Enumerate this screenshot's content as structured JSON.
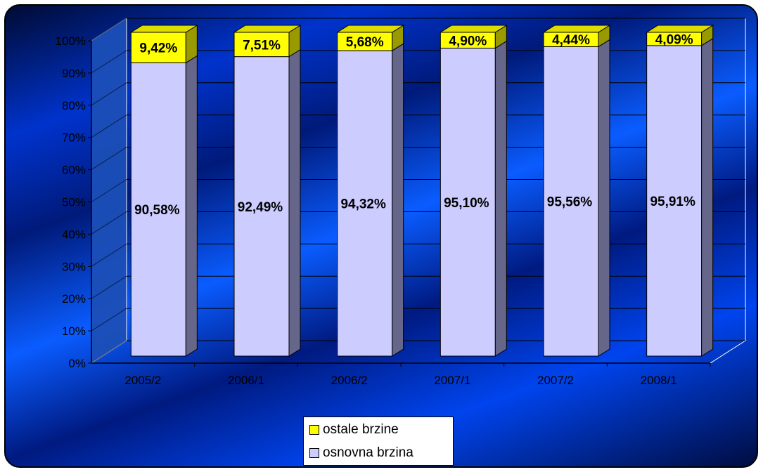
{
  "chart_data": {
    "type": "bar",
    "stacked": true,
    "percent": true,
    "categories": [
      "2005/2",
      "2006/1",
      "2006/2",
      "2007/1",
      "2007/2",
      "2008/1"
    ],
    "series": [
      {
        "name": "osnovna brzina",
        "color": "#ccccff",
        "values": [
          90.58,
          92.49,
          94.32,
          95.1,
          95.56,
          95.91
        ],
        "labels": [
          "90,58%",
          "92,49%",
          "94,32%",
          "95,10%",
          "95,56%",
          "95,91%"
        ]
      },
      {
        "name": "ostale brzine",
        "color": "#ffff00",
        "values": [
          9.42,
          7.51,
          5.68,
          4.9,
          4.44,
          4.09
        ],
        "labels": [
          "9,42%",
          "7,51%",
          "5,68%",
          "4,90%",
          "4,44%",
          "4,09%"
        ]
      }
    ],
    "y_ticks": [
      "0%",
      "10%",
      "20%",
      "30%",
      "40%",
      "50%",
      "60%",
      "70%",
      "80%",
      "90%",
      "100%"
    ],
    "ylim": [
      0,
      100
    ],
    "grid": true,
    "legend_position": "bottom",
    "legend_order": [
      "ostale brzine",
      "osnovna brzina"
    ],
    "title": "",
    "xlabel": "",
    "ylabel": ""
  }
}
